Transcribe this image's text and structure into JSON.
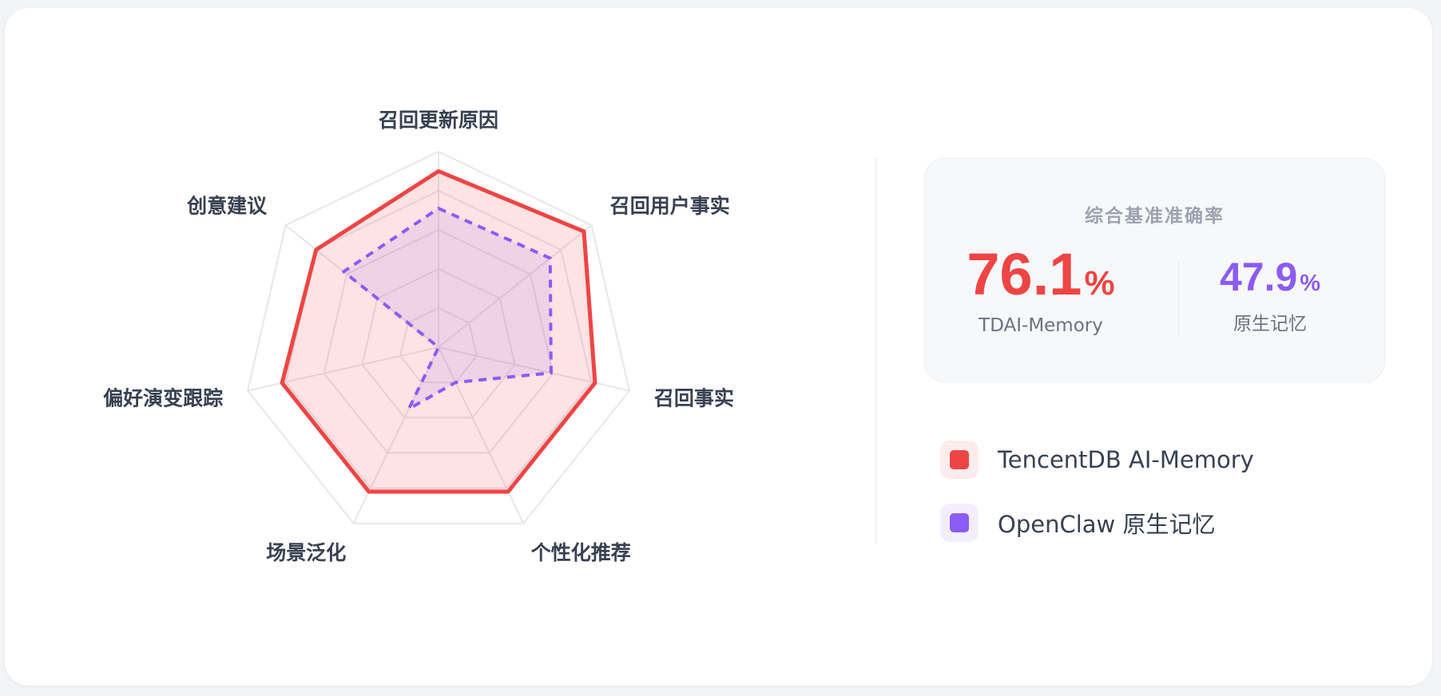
{
  "chart_data": {
    "type": "radar",
    "axes": [
      "召回更新原因",
      "召回用户事实",
      "召回事实",
      "个性化推荐",
      "场景泛化",
      "偏好演变跟踪",
      "创意建议"
    ],
    "range": [
      0,
      100
    ],
    "grid_levels": 5,
    "series": [
      {
        "name": "TencentDB AI-Memory",
        "values": [
          90,
          95,
          82,
          82,
          82,
          82,
          80
        ],
        "color": "#ef4444",
        "fill": "rgba(239,68,68,0.15)",
        "line_style": "solid"
      },
      {
        "name": "OpenClaw 原生记忆",
        "values": [
          71,
          73,
          59,
          20,
          35,
          0,
          62
        ],
        "color": "#8b5cf6",
        "fill": "rgba(139,92,246,0.12)",
        "line_style": "dashed"
      }
    ]
  },
  "summary": {
    "title": "综合基准准确率",
    "primary": {
      "value": "76.1",
      "unit": "%",
      "label": "TDAI-Memory",
      "color": "#ef4444"
    },
    "secondary": {
      "value": "47.9",
      "unit": "%",
      "label": "原生记忆",
      "color": "#8b5cf6"
    }
  },
  "legend": [
    {
      "label": "TencentDB AI-Memory",
      "color": "#ef4444",
      "bg": "#fdecec"
    },
    {
      "label": "OpenClaw 原生记忆",
      "color": "#8b5cf6",
      "bg": "#f3eefe"
    }
  ]
}
